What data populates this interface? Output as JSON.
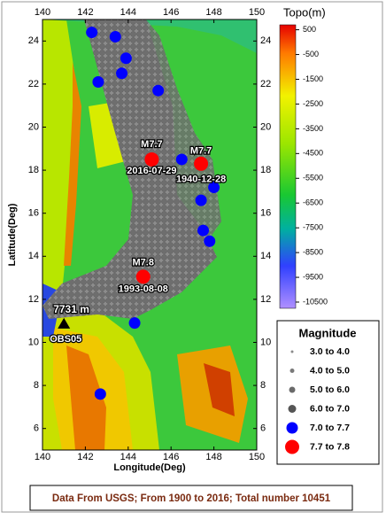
{
  "map": {
    "xlim": [
      140,
      150
    ],
    "ylim": [
      5,
      25
    ],
    "xticks": [
      140,
      142,
      144,
      146,
      148,
      150
    ],
    "yticks": [
      6,
      8,
      10,
      12,
      14,
      16,
      18,
      20,
      22,
      24
    ],
    "xlabel": "Longitude(Deg)",
    "ylabel": "Latitude(Deg)",
    "colorbar": {
      "title": "Topo(m)",
      "lim": [
        -10750,
        700
      ],
      "ticks": [
        500,
        -500,
        -1500,
        -2500,
        -3500,
        -4500,
        -5500,
        -6500,
        -7500,
        -8500,
        -9500,
        -10500
      ]
    },
    "legend": {
      "title": "Magnitude",
      "items": [
        {
          "label": "3.0 to 4.0",
          "color": "#8a8a8a"
        },
        {
          "label": "4.0 to 5.0",
          "color": "#7a7a7a"
        },
        {
          "label": "5.0 to 6.0",
          "color": "#6a6a6a"
        },
        {
          "label": "6.0 to 7.0",
          "color": "#555555"
        },
        {
          "label": "7.0 to 7.7",
          "color": "#0000ff"
        },
        {
          "label": "7.7 to 7.8",
          "color": "#ff0000"
        }
      ]
    },
    "events_m70_77": {
      "lon": [
        142.3,
        143.4,
        143.9,
        143.7,
        142.6,
        145.4,
        146.5,
        148.0,
        147.4,
        147.5,
        147.8,
        144.3,
        142.7
      ],
      "lat": [
        24.4,
        24.2,
        23.2,
        22.5,
        22.1,
        21.7,
        18.5,
        17.2,
        16.6,
        15.2,
        14.7,
        10.9,
        7.6
      ]
    },
    "events_m77_78": [
      {
        "lon": 145.1,
        "lat": 18.5,
        "label": "M7.7",
        "date": "2016-07-29"
      },
      {
        "lon": 147.4,
        "lat": 18.3,
        "label": "M7.7",
        "date": "1940-12-28"
      },
      {
        "lon": 144.7,
        "lat": 13.05,
        "label": "M7.8",
        "date": "1993-08-08"
      }
    ],
    "station": {
      "lon": 141.0,
      "lat": 10.85,
      "name": "OBS05",
      "depth": "7731 m"
    },
    "footer": "Data From USGS; From 1900 to 2016; Total number 10451"
  }
}
